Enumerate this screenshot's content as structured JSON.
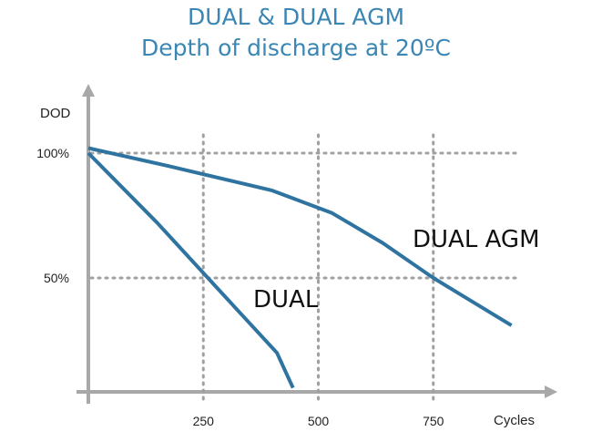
{
  "chart_data": {
    "type": "line",
    "title": "DUAL & DUAL AGM",
    "subtitle": "Depth of discharge at 20ºC",
    "xlabel": "Cycles",
    "ylabel": "DOD",
    "x_ticks": [
      250,
      500,
      750
    ],
    "y_ticks": [
      50,
      100
    ],
    "y_tick_labels": [
      "50%",
      "100%"
    ],
    "xlim": [
      0,
      1000
    ],
    "ylim": [
      0,
      115
    ],
    "grid": true,
    "series": [
      {
        "name": "DUAL AGM",
        "x": [
          0,
          170,
          400,
          530,
          640,
          750,
          920
        ],
        "y": [
          102,
          95,
          85,
          76,
          64,
          50,
          31
        ],
        "color": "#2f74a0"
      },
      {
        "name": "DUAL",
        "x": [
          0,
          150,
          280,
          370,
          410,
          430,
          445
        ],
        "y": [
          100,
          72,
          46,
          28,
          20,
          12,
          6
        ],
        "color": "#2f74a0"
      }
    ]
  }
}
